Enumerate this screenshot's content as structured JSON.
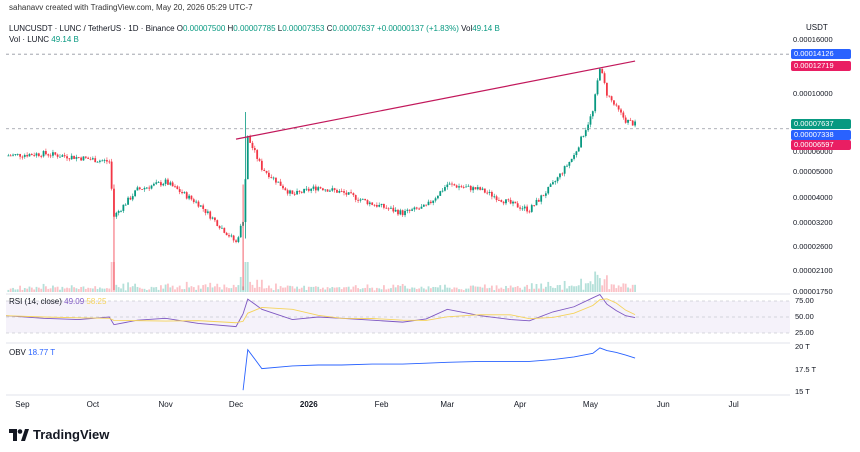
{
  "header": {
    "created_line": "sahanavv created with TradingView.com, May 20, 2026 05:29 UTC-7",
    "symbol": "LUNCUSDT · LUNC / TetherUS · 1D · Binance",
    "o_label": "O",
    "o_value": "0.00007500",
    "h_label": "H",
    "h_value": "0.00007785",
    "l_label": "L",
    "l_value": "0.00007353",
    "c_label": "C",
    "c_value": "0.00007637",
    "change": "+0.00000137 (+1.83%)",
    "vol_label": "Vol",
    "vol_value": "49.14 B",
    "vol_legend_label": "Vol · LUNC",
    "vol_legend_value": "49.14 B"
  },
  "price_axis": {
    "currency": "USDT",
    "ticks": [
      "0.00016000",
      "0.00010000",
      "0.00006000",
      "0.00005000",
      "0.00004000",
      "0.00003200",
      "0.00002600",
      "0.00002100",
      "0.00001750"
    ]
  },
  "badges": [
    {
      "text": "0.00014126",
      "color": "#2962ff"
    },
    {
      "text": "0.00012719",
      "color": "#e91e63"
    },
    {
      "text": "0.00007637",
      "color": "#089981"
    },
    {
      "text": "0.00007338",
      "color": "#2962ff"
    },
    {
      "text": "0.00006597",
      "color": "#e91e63"
    }
  ],
  "rsi": {
    "label": "RSI (14, close)",
    "value": "49.09",
    "ma_value": "58.25",
    "ticks": [
      "75.00",
      "50.00",
      "25.00"
    ]
  },
  "obv": {
    "label": "OBV",
    "value": "18.77 T",
    "ticks": [
      "20 T",
      "17.5 T",
      "15 T"
    ]
  },
  "x_axis": {
    "ticks": [
      {
        "label": "Sep",
        "bold": false
      },
      {
        "label": "Oct",
        "bold": false
      },
      {
        "label": "Nov",
        "bold": false
      },
      {
        "label": "Dec",
        "bold": false
      },
      {
        "label": "2026",
        "bold": true
      },
      {
        "label": "Feb",
        "bold": false
      },
      {
        "label": "Mar",
        "bold": false
      },
      {
        "label": "Apr",
        "bold": false
      },
      {
        "label": "May",
        "bold": false
      },
      {
        "label": "Jun",
        "bold": false
      },
      {
        "label": "Jul",
        "bold": false
      }
    ]
  },
  "logo_text": "TradingView",
  "colors": {
    "up": "#089981",
    "down": "#f23645",
    "trend": "#c2185b",
    "rsi": "#7e57c2",
    "rsi_ma": "#f5d35b",
    "obv": "#2962ff",
    "dash": "#9598a1"
  },
  "chart_data": {
    "type": "candlestick",
    "symbol": "LUNCUSDT",
    "interval": "1D",
    "y_scale": "log",
    "ylim": [
      1.75e-05,
      0.00016
    ],
    "close_series": {
      "x": [
        "2025-08-25",
        "2025-09-10",
        "2025-09-25",
        "2025-10-08",
        "2025-10-10",
        "2025-10-20",
        "2025-11-01",
        "2025-11-15",
        "2025-12-01",
        "2025-12-04",
        "2025-12-06",
        "2025-12-12",
        "2025-12-25",
        "2026-01-05",
        "2026-01-15",
        "2026-01-28",
        "2026-02-10",
        "2026-02-20",
        "2026-03-01",
        "2026-03-15",
        "2026-03-28",
        "2026-04-05",
        "2026-04-15",
        "2026-04-24",
        "2026-05-02",
        "2026-05-05",
        "2026-05-08",
        "2026-05-12",
        "2026-05-16",
        "2026-05-20"
      ],
      "close": [
        5.8e-05,
        5.9e-05,
        5.7e-05,
        5.5e-05,
        3.4e-05,
        4.3e-05,
        4.6e-05,
        3.8e-05,
        2.7e-05,
        3.3e-05,
        6.8e-05,
        5.2e-05,
        4.1e-05,
        4.4e-05,
        4.2e-05,
        3.8e-05,
        3.5e-05,
        3.7e-05,
        4.5e-05,
        4.3e-05,
        3.8e-05,
        3.6e-05,
        4.5e-05,
        5.8e-05,
        8.5e-05,
        0.000127,
        0.0001,
        8.8e-05,
        7.9e-05,
        7.637e-05
      ]
    },
    "trendline": {
      "from": [
        "2025-12-01",
        6.7e-05
      ],
      "to": [
        "2026-05-20",
        0.000133
      ]
    },
    "levels": [
      0.00014126,
      7.338e-05
    ],
    "rsi_series": [
      52,
      48,
      46,
      50,
      38,
      45,
      48,
      40,
      35,
      55,
      78,
      62,
      46,
      50,
      48,
      45,
      42,
      47,
      62,
      52,
      46,
      44,
      58,
      66,
      80,
      85,
      70,
      60,
      52,
      49.09
    ],
    "obv_series_T": [
      null,
      null,
      null,
      null,
      null,
      null,
      null,
      null,
      null,
      15.2,
      19.7,
      17.6,
      17.9,
      18.0,
      18.0,
      18.1,
      18.1,
      18.2,
      18.3,
      18.4,
      18.4,
      18.4,
      18.6,
      18.9,
      19.3,
      19.9,
      19.6,
      19.4,
      19.1,
      18.77
    ]
  }
}
